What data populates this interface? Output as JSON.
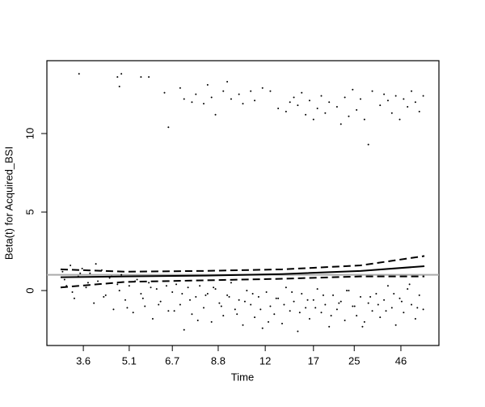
{
  "chart_data": {
    "type": "scatter",
    "xlabel": "Time",
    "ylabel": "Beta(t) for Acquired_BSI",
    "xlim": [
      0,
      1
    ],
    "ylim": [
      -3.5,
      14.64
    ],
    "xticks": [
      {
        "value": 0.093,
        "label": "3.6"
      },
      {
        "value": 0.21,
        "label": "5.1"
      },
      {
        "value": 0.32,
        "label": "6.7"
      },
      {
        "value": 0.437,
        "label": "8.8"
      },
      {
        "value": 0.557,
        "label": "12"
      },
      {
        "value": 0.68,
        "label": "17"
      },
      {
        "value": 0.784,
        "label": "25"
      },
      {
        "value": 0.903,
        "label": "46"
      }
    ],
    "yticks": [
      0,
      5,
      10
    ],
    "reference_line": {
      "y": 1,
      "color": "#aaaaaa"
    },
    "series": [
      {
        "color": "#000000",
        "x": [
          0.082,
          0.18,
          0.185,
          0.19,
          0.24,
          0.26,
          0.3,
          0.31,
          0.34,
          0.35,
          0.37,
          0.38,
          0.4,
          0.41,
          0.42,
          0.43,
          0.45,
          0.46,
          0.47,
          0.49,
          0.5,
          0.52,
          0.53,
          0.55,
          0.57,
          0.59,
          0.61,
          0.62,
          0.63,
          0.64,
          0.65,
          0.66,
          0.67,
          0.68,
          0.69,
          0.7,
          0.71,
          0.72,
          0.74,
          0.75,
          0.76,
          0.77,
          0.78,
          0.79,
          0.8,
          0.81,
          0.82,
          0.83,
          0.85,
          0.86,
          0.87,
          0.88,
          0.89,
          0.9,
          0.91,
          0.92,
          0.93,
          0.94,
          0.95,
          0.96
        ],
        "y": [
          13.8,
          13.6,
          13.0,
          13.8,
          13.6,
          13.6,
          12.6,
          10.4,
          12.9,
          12.2,
          12.0,
          12.5,
          11.9,
          13.1,
          12.3,
          11.2,
          12.7,
          13.3,
          12.2,
          12.5,
          11.9,
          12.7,
          12.1,
          12.9,
          12.7,
          11.6,
          11.4,
          12.0,
          12.3,
          11.8,
          12.6,
          11.2,
          12.1,
          10.9,
          11.6,
          12.4,
          11.3,
          12.0,
          11.7,
          10.6,
          12.3,
          11.1,
          12.8,
          11.5,
          12.2,
          10.9,
          9.3,
          12.7,
          11.8,
          12.5,
          12.1,
          11.3,
          12.4,
          10.9,
          12.2,
          11.7,
          12.7,
          12.0,
          11.4,
          12.4
        ]
      },
      {
        "color": "#000000",
        "x": [
          0.04,
          0.05,
          0.06,
          0.07,
          0.08,
          0.09,
          0.1,
          0.11,
          0.12,
          0.13,
          0.14,
          0.15,
          0.16,
          0.17,
          0.18,
          0.19,
          0.2,
          0.21,
          0.22,
          0.23,
          0.24,
          0.25,
          0.26,
          0.27,
          0.28,
          0.29,
          0.3,
          0.31,
          0.32,
          0.33,
          0.34,
          0.35,
          0.36,
          0.37,
          0.38,
          0.39,
          0.4,
          0.41,
          0.42,
          0.43,
          0.44,
          0.45,
          0.46,
          0.47,
          0.48,
          0.49,
          0.5,
          0.51,
          0.52,
          0.53,
          0.54,
          0.55,
          0.56,
          0.57,
          0.58,
          0.59,
          0.6,
          0.61,
          0.62,
          0.63,
          0.64,
          0.65,
          0.66,
          0.67,
          0.68,
          0.69,
          0.7,
          0.71,
          0.72,
          0.73,
          0.74,
          0.75,
          0.76,
          0.77,
          0.78,
          0.79,
          0.8,
          0.81,
          0.82,
          0.83,
          0.84,
          0.85,
          0.86,
          0.87,
          0.88,
          0.89,
          0.9,
          0.91,
          0.92,
          0.93,
          0.94,
          0.95,
          0.96
        ],
        "y": [
          1.2,
          0.3,
          1.6,
          -0.5,
          0.9,
          1.4,
          0.2,
          1.1,
          -0.8,
          0.6,
          1.3,
          -0.3,
          0.8,
          -1.2,
          0.4,
          1.0,
          -0.6,
          0.3,
          -1.4,
          0.7,
          -0.2,
          -1.0,
          0.5,
          -1.8,
          0.1,
          -0.7,
          0.6,
          -1.3,
          -0.1,
          0.4,
          -0.9,
          -2.5,
          0.2,
          -1.5,
          -0.4,
          0.3,
          -1.1,
          -0.2,
          -2.0,
          0.1,
          -0.8,
          -1.6,
          -0.3,
          0.5,
          -1.2,
          -0.6,
          -2.2,
          0.0,
          -0.9,
          -1.7,
          -0.4,
          -2.4,
          -0.1,
          -1.0,
          -1.5,
          -0.5,
          -2.1,
          0.2,
          -1.3,
          -0.7,
          -2.6,
          -0.2,
          -1.1,
          -1.8,
          -0.6,
          0.1,
          -1.4,
          -0.9,
          -2.3,
          -0.3,
          -1.2,
          -0.7,
          -1.9,
          0.0,
          -1.0,
          -1.6,
          -0.4,
          -2.0,
          -0.8,
          -1.3,
          -0.2,
          -1.7,
          -0.6,
          0.3,
          -1.1,
          -2.2,
          -0.5,
          -1.4,
          0.1,
          -0.9,
          -1.8,
          -0.3,
          -1.2
        ]
      },
      {
        "color": "#000000",
        "x": [
          0.045,
          0.065,
          0.085,
          0.105,
          0.125,
          0.145,
          0.165,
          0.185,
          0.205,
          0.225,
          0.245,
          0.265,
          0.285,
          0.305,
          0.325,
          0.345,
          0.365,
          0.385,
          0.405,
          0.425,
          0.445,
          0.465,
          0.485,
          0.505,
          0.525,
          0.545,
          0.565,
          0.585,
          0.605,
          0.625,
          0.645,
          0.665,
          0.685,
          0.705,
          0.725,
          0.745,
          0.765,
          0.785,
          0.805,
          0.825,
          0.845,
          0.865,
          0.885,
          0.905,
          0.925,
          0.945
        ],
        "y": [
          0.7,
          -0.1,
          1.1,
          0.5,
          1.7,
          -0.4,
          0.9,
          0.0,
          -1.1,
          0.6,
          -0.5,
          0.2,
          -0.9,
          0.3,
          -1.3,
          -0.2,
          -0.6,
          -1.9,
          -0.3,
          0.2,
          -1.0,
          -0.4,
          -1.5,
          -0.7,
          -0.2,
          -1.2,
          -2.0,
          -0.5,
          -0.9,
          -0.1,
          -1.4,
          -0.6,
          -1.1,
          -0.3,
          -1.6,
          -0.8,
          0.0,
          -1.0,
          -2.3,
          -0.4,
          -0.9,
          -1.3,
          -0.2,
          -0.7,
          0.4,
          -1.1
        ]
      },
      {
        "color": "#000000",
        "line": "solid",
        "x": [
          0.035,
          0.2,
          0.4,
          0.6,
          0.8,
          0.963
        ],
        "y": [
          0.85,
          0.9,
          0.95,
          1.05,
          1.25,
          1.55
        ]
      },
      {
        "color": "#000000",
        "line": "dashed",
        "x": [
          0.035,
          0.2,
          0.4,
          0.6,
          0.8,
          0.963
        ],
        "y": [
          1.35,
          1.2,
          1.25,
          1.35,
          1.6,
          2.2
        ]
      },
      {
        "color": "#000000",
        "line": "dashed",
        "x": [
          0.035,
          0.2,
          0.4,
          0.6,
          0.8,
          0.963
        ],
        "y": [
          0.2,
          0.55,
          0.65,
          0.75,
          0.9,
          0.9
        ]
      }
    ]
  }
}
